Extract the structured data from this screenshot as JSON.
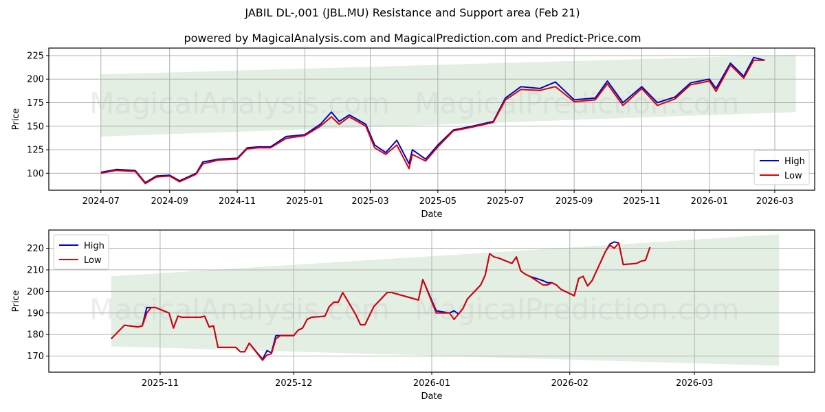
{
  "header": {
    "title": "JABIL DL-,001 (JBL.MU) Resistance and Support area (Feb 21)",
    "subtitle": "powered by MagicalAnalysis.com and MagicalPrediction.com and Predict-Price.com"
  },
  "watermarks": [
    "MagicalAnalysis.com",
    "MagicalPrediction.com"
  ],
  "colors": {
    "high": "#0000cc",
    "low": "#dd0000",
    "band": "#d8ead8",
    "grid": "#b0b0b0"
  },
  "chart_data": [
    {
      "type": "line",
      "title": "",
      "xlabel": "Date",
      "ylabel": "Price",
      "ylim": [
        82,
        233
      ],
      "yticks": [
        100,
        125,
        150,
        175,
        200,
        225
      ],
      "xticks": [
        "2024-07",
        "2024-09",
        "2024-11",
        "2025-01",
        "2025-03",
        "2025-05",
        "2025-07",
        "2025-09",
        "2025-11",
        "2026-01",
        "2026-03"
      ],
      "grid": true,
      "legend": {
        "position": "lower right",
        "entries": [
          "High",
          "Low"
        ]
      },
      "band": {
        "label": "Resistance and Support area",
        "start": {
          "date": "2024-07-01",
          "upper": 205,
          "lower": 139
        },
        "end": {
          "date": "2026-03-20",
          "upper": 226,
          "lower": 165
        }
      },
      "x": [
        "2024-07-01",
        "2024-07-15",
        "2024-08-01",
        "2024-08-10",
        "2024-08-20",
        "2024-09-01",
        "2024-09-10",
        "2024-09-25",
        "2024-10-01",
        "2024-10-15",
        "2024-11-01",
        "2024-11-10",
        "2024-11-20",
        "2024-12-01",
        "2024-12-15",
        "2025-01-01",
        "2025-01-15",
        "2025-01-25",
        "2025-02-01",
        "2025-02-10",
        "2025-02-25",
        "2025-03-05",
        "2025-03-15",
        "2025-03-25",
        "2025-04-05",
        "2025-04-08",
        "2025-04-20",
        "2025-05-01",
        "2025-05-15",
        "2025-06-01",
        "2025-06-20",
        "2025-07-01",
        "2025-07-15",
        "2025-08-01",
        "2025-08-15",
        "2025-09-01",
        "2025-09-20",
        "2025-10-01",
        "2025-10-15",
        "2025-11-01",
        "2025-11-15",
        "2025-12-01",
        "2025-12-15",
        "2026-01-01",
        "2026-01-07",
        "2026-01-20",
        "2026-02-01",
        "2026-02-10",
        "2026-02-20"
      ],
      "series": [
        {
          "name": "High",
          "values": [
            101,
            104,
            103,
            90,
            97,
            98,
            92,
            100,
            112,
            115,
            116,
            127,
            128,
            128,
            139,
            141,
            152,
            165,
            155,
            162,
            152,
            130,
            122,
            135,
            110,
            125,
            115,
            130,
            146,
            150,
            155,
            180,
            192,
            190,
            197,
            178,
            180,
            198,
            175,
            192,
            175,
            181,
            196,
            200,
            190,
            217,
            203,
            223,
            220
          ]
        },
        {
          "name": "Low",
          "values": [
            100,
            103,
            102,
            89,
            96,
            97,
            91,
            99,
            110,
            114,
            115,
            126,
            127,
            127,
            137,
            140,
            150,
            160,
            152,
            160,
            150,
            127,
            120,
            130,
            105,
            120,
            113,
            128,
            145,
            149,
            154,
            178,
            189,
            188,
            192,
            176,
            178,
            195,
            172,
            190,
            172,
            179,
            194,
            198,
            187,
            215,
            201,
            220,
            220
          ]
        }
      ]
    },
    {
      "type": "line",
      "title": "",
      "xlabel": "Date",
      "ylabel": "Price",
      "ylim": [
        162.5,
        228.5
      ],
      "yticks": [
        170,
        180,
        190,
        200,
        210,
        220
      ],
      "xticks": [
        "2025-11",
        "2025-12",
        "2026-01",
        "2026-02",
        "2026-03"
      ],
      "grid": true,
      "legend": {
        "position": "upper left",
        "entries": [
          "High",
          "Low"
        ]
      },
      "band": {
        "label": "Resistance and Support area",
        "start": {
          "date": "2025-10-21",
          "upper": 207,
          "lower": 174.5
        },
        "end": {
          "date": "2026-03-20",
          "upper": 226.5,
          "lower": 165.5
        }
      },
      "x": [
        "2025-10-21",
        "2025-10-24",
        "2025-10-27",
        "2025-10-28",
        "2025-10-29",
        "2025-10-30",
        "2025-10-31",
        "2025-11-03",
        "2025-11-04",
        "2025-11-05",
        "2025-11-06",
        "2025-11-07",
        "2025-11-10",
        "2025-11-11",
        "2025-11-12",
        "2025-11-13",
        "2025-11-14",
        "2025-11-17",
        "2025-11-18",
        "2025-11-19",
        "2025-11-20",
        "2025-11-21",
        "2025-11-24",
        "2025-11-25",
        "2025-11-26",
        "2025-11-27",
        "2025-11-28",
        "2025-12-01",
        "2025-12-02",
        "2025-12-03",
        "2025-12-04",
        "2025-12-05",
        "2025-12-08",
        "2025-12-09",
        "2025-12-10",
        "2025-12-11",
        "2025-12-12",
        "2025-12-15",
        "2025-12-16",
        "2025-12-17",
        "2025-12-19",
        "2025-12-22",
        "2025-12-23",
        "2025-12-29",
        "2025-12-30",
        "2026-01-02",
        "2026-01-05",
        "2026-01-06",
        "2026-01-07",
        "2026-01-08",
        "2026-01-09",
        "2026-01-12",
        "2026-01-13",
        "2026-01-14",
        "2026-01-15",
        "2026-01-16",
        "2026-01-19",
        "2026-01-20",
        "2026-01-21",
        "2026-01-22",
        "2026-01-23",
        "2026-01-26",
        "2026-01-27",
        "2026-01-28",
        "2026-01-29",
        "2026-01-30",
        "2026-02-02",
        "2026-02-03",
        "2026-02-04",
        "2026-02-05",
        "2026-02-06",
        "2026-02-09",
        "2026-02-10",
        "2026-02-11",
        "2026-02-12",
        "2026-02-13",
        "2026-02-16",
        "2026-02-17",
        "2026-02-18",
        "2026-02-19"
      ],
      "series": [
        {
          "name": "High",
          "values": [
            178,
            184.3,
            183.5,
            184,
            192.5,
            192.5,
            192.5,
            190,
            183,
            188.5,
            188,
            188,
            188,
            188.5,
            183.5,
            184,
            174,
            174,
            174,
            172,
            172,
            176,
            168.5,
            172.5,
            171.5,
            179.5,
            179.5,
            179.5,
            182,
            183,
            187,
            188,
            188.5,
            193,
            195,
            195,
            199.5,
            189,
            184.5,
            184.5,
            193,
            199.5,
            199.5,
            196,
            205.5,
            191,
            190,
            191,
            189.5,
            192,
            196.5,
            203,
            207.5,
            217.5,
            216,
            215.5,
            213,
            216,
            209.5,
            208,
            207,
            205,
            204,
            204,
            203,
            201,
            198,
            206,
            207,
            202.5,
            205,
            218.5,
            222,
            223,
            222.5,
            212.5,
            213,
            214,
            214.5,
            220.5
          ]
        },
        {
          "name": "Low",
          "values": [
            178,
            184.3,
            183.5,
            184,
            190,
            192.5,
            192.5,
            190,
            183,
            188.5,
            188,
            188,
            188,
            188.5,
            183.5,
            184,
            174,
            174,
            174,
            172,
            172,
            176,
            168,
            170.5,
            171,
            178,
            179.5,
            179.5,
            182,
            183,
            187,
            188,
            188.5,
            193,
            195,
            195,
            199.5,
            189,
            184.5,
            184.5,
            193,
            199.5,
            199.5,
            196,
            205.5,
            190,
            190,
            187,
            189.5,
            192,
            196.5,
            203,
            207.5,
            217.5,
            216,
            215.5,
            213,
            216,
            209.5,
            208,
            207,
            203,
            203,
            204,
            203,
            201,
            198,
            206,
            207,
            202.5,
            205,
            218.5,
            221.5,
            220,
            222.5,
            212.5,
            213,
            214,
            214.5,
            220.5
          ]
        }
      ]
    }
  ]
}
